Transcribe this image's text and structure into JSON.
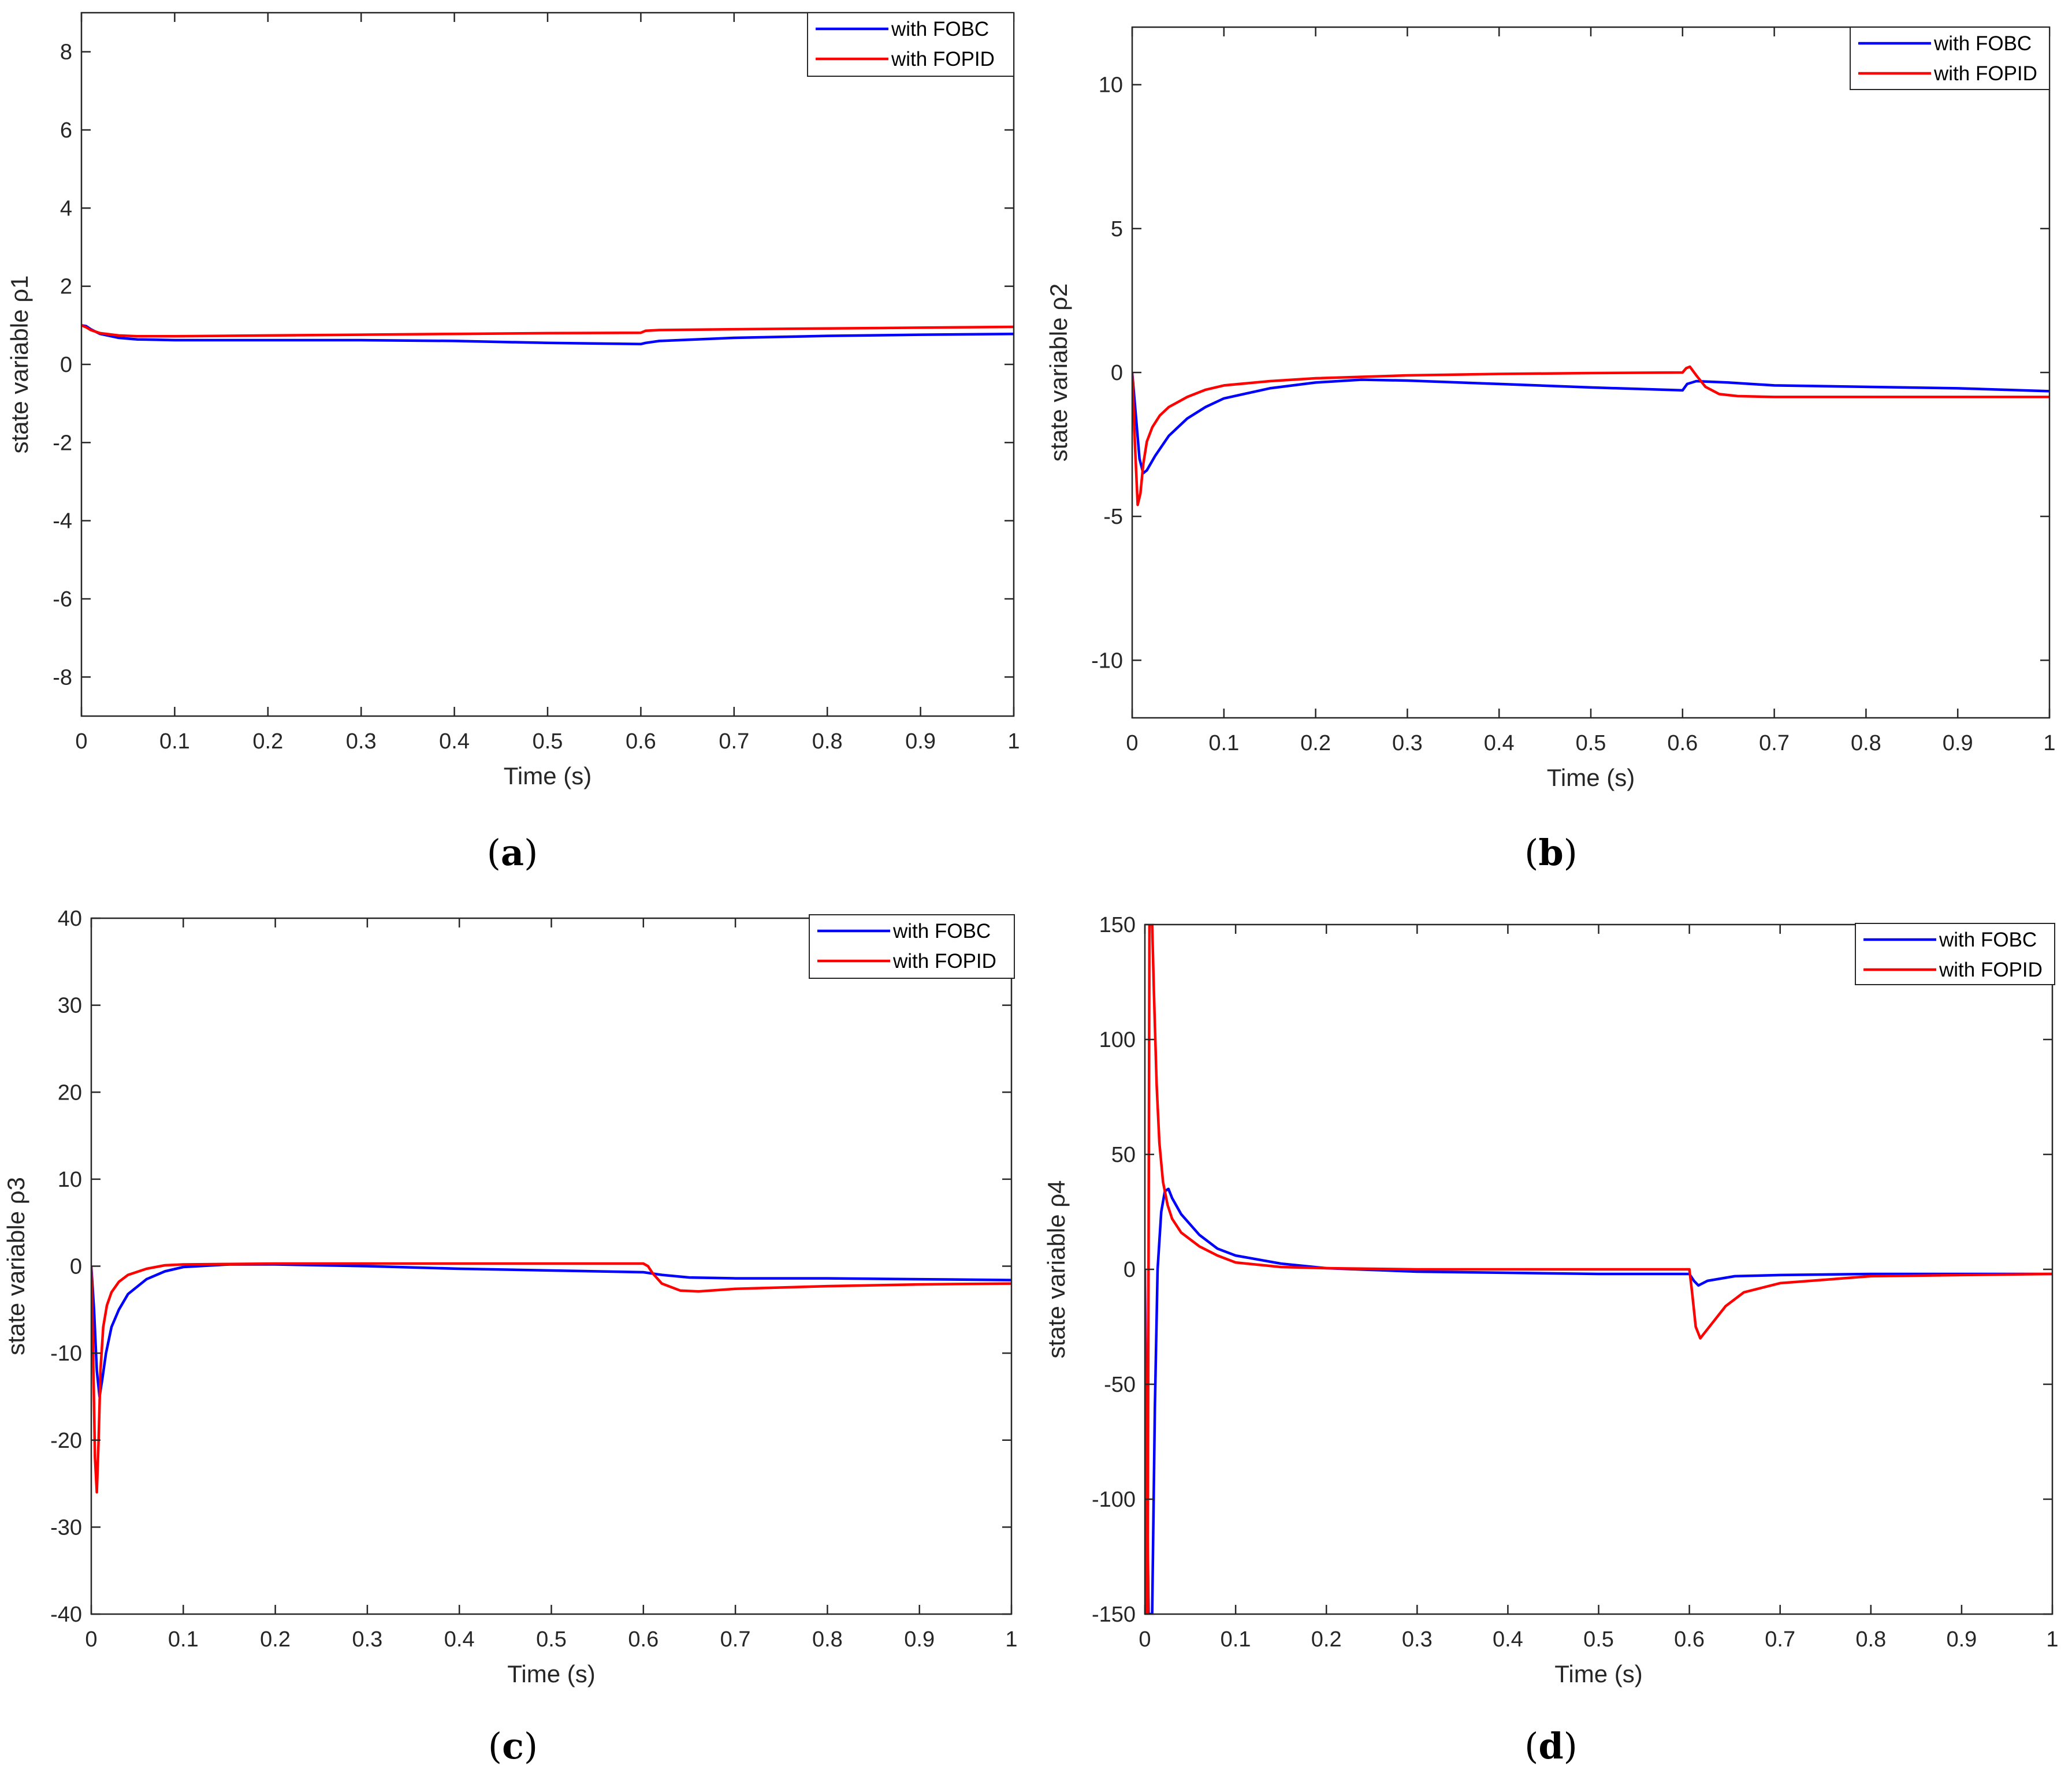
{
  "chart_data": [
    {
      "panel": "a",
      "type": "line",
      "caption": {
        "open": "(",
        "letter": "a",
        "close": ")"
      },
      "xlabel": "Time (s)",
      "ylabel": "state variable ρ1",
      "xlim": [
        0,
        1
      ],
      "ylim": [
        -9,
        9
      ],
      "xticks": [
        0,
        0.1,
        0.2,
        0.3,
        0.4,
        0.5,
        0.6,
        0.7,
        0.8,
        0.9,
        1
      ],
      "xtick_labels": [
        "0",
        "0.1",
        "0.2",
        "0.3",
        "0.4",
        "0.5",
        "0.6",
        "0.7",
        "0.8",
        "0.9",
        "1"
      ],
      "yticks": [
        -8,
        -6,
        -4,
        -2,
        0,
        2,
        4,
        6,
        8
      ],
      "ytick_labels": [
        "-8",
        "-6",
        "-4",
        "-2",
        "0",
        "2",
        "4",
        "6",
        "8"
      ],
      "legend_position": "top-right",
      "series": [
        {
          "name": "with FOBC",
          "color": "#0000ff",
          "x": [
            0,
            0.005,
            0.01,
            0.02,
            0.04,
            0.06,
            0.1,
            0.2,
            0.3,
            0.4,
            0.5,
            0.6,
            0.605,
            0.62,
            0.7,
            0.8,
            0.9,
            1
          ],
          "y": [
            1.0,
            0.98,
            0.9,
            0.78,
            0.68,
            0.64,
            0.62,
            0.62,
            0.62,
            0.6,
            0.55,
            0.52,
            0.55,
            0.6,
            0.68,
            0.73,
            0.76,
            0.78
          ]
        },
        {
          "name": "with FOPID",
          "color": "#ff0000",
          "x": [
            0,
            0.005,
            0.01,
            0.02,
            0.04,
            0.06,
            0.1,
            0.2,
            0.3,
            0.4,
            0.5,
            0.6,
            0.605,
            0.62,
            0.7,
            0.8,
            0.9,
            1
          ],
          "y": [
            1.0,
            0.95,
            0.88,
            0.8,
            0.74,
            0.72,
            0.72,
            0.74,
            0.76,
            0.78,
            0.8,
            0.81,
            0.86,
            0.88,
            0.9,
            0.92,
            0.94,
            0.96
          ]
        }
      ]
    },
    {
      "panel": "b",
      "type": "line",
      "caption": {
        "open": "(",
        "letter": "b",
        "close": ")"
      },
      "xlabel": "Time (s)",
      "ylabel": "state variable ρ2",
      "xlim": [
        0,
        1
      ],
      "ylim": [
        -12,
        12
      ],
      "xticks": [
        0,
        0.1,
        0.2,
        0.3,
        0.4,
        0.5,
        0.6,
        0.7,
        0.8,
        0.9,
        1
      ],
      "xtick_labels": [
        "0",
        "0.1",
        "0.2",
        "0.3",
        "0.4",
        "0.5",
        "0.6",
        "0.7",
        "0.8",
        "0.9",
        "1"
      ],
      "yticks": [
        -10,
        -5,
        0,
        5,
        10
      ],
      "ytick_labels": [
        "-10",
        "-5",
        "0",
        "5",
        "10"
      ],
      "legend_position": "top-right",
      "series": [
        {
          "name": "with FOBC",
          "color": "#0000ff",
          "x": [
            0,
            0.004,
            0.008,
            0.012,
            0.016,
            0.025,
            0.04,
            0.06,
            0.08,
            0.1,
            0.15,
            0.2,
            0.25,
            0.3,
            0.4,
            0.5,
            0.6,
            0.605,
            0.615,
            0.65,
            0.7,
            0.8,
            0.9,
            1
          ],
          "y": [
            0,
            -1.5,
            -3.0,
            -3.5,
            -3.4,
            -2.9,
            -2.2,
            -1.6,
            -1.2,
            -0.9,
            -0.55,
            -0.35,
            -0.25,
            -0.28,
            -0.4,
            -0.52,
            -0.62,
            -0.4,
            -0.3,
            -0.35,
            -0.45,
            -0.5,
            -0.55,
            -0.65
          ]
        },
        {
          "name": "with FOPID",
          "color": "#ff0000",
          "x": [
            0,
            0.003,
            0.006,
            0.009,
            0.012,
            0.016,
            0.022,
            0.03,
            0.04,
            0.06,
            0.08,
            0.1,
            0.15,
            0.2,
            0.3,
            0.4,
            0.5,
            0.6,
            0.604,
            0.608,
            0.615,
            0.625,
            0.64,
            0.66,
            0.7,
            0.8,
            0.9,
            1
          ],
          "y": [
            0,
            -2.5,
            -4.6,
            -4.2,
            -3.2,
            -2.4,
            -1.9,
            -1.5,
            -1.2,
            -0.85,
            -0.6,
            -0.45,
            -0.3,
            -0.2,
            -0.1,
            -0.05,
            -0.02,
            0.0,
            0.15,
            0.2,
            -0.1,
            -0.5,
            -0.75,
            -0.82,
            -0.85,
            -0.85,
            -0.85,
            -0.85
          ]
        }
      ]
    },
    {
      "panel": "c",
      "type": "line",
      "caption": {
        "open": "(",
        "letter": "c",
        "close": ")"
      },
      "xlabel": "Time (s)",
      "ylabel": "state variable ρ3",
      "xlim": [
        0,
        1
      ],
      "ylim": [
        -40,
        40
      ],
      "xticks": [
        0,
        0.1,
        0.2,
        0.3,
        0.4,
        0.5,
        0.6,
        0.7,
        0.8,
        0.9,
        1
      ],
      "xtick_labels": [
        "0",
        "0.1",
        "0.2",
        "0.3",
        "0.4",
        "0.5",
        "0.6",
        "0.7",
        "0.8",
        "0.9",
        "1"
      ],
      "yticks": [
        -40,
        -30,
        -20,
        -10,
        0,
        10,
        20,
        30,
        40
      ],
      "ytick_labels": [
        "-40",
        "-30",
        "-20",
        "-10",
        "0",
        "10",
        "20",
        "30",
        "40"
      ],
      "legend_position": "top-right",
      "series": [
        {
          "name": "with FOBC",
          "color": "#0000ff",
          "x": [
            0,
            0.003,
            0.006,
            0.009,
            0.012,
            0.016,
            0.022,
            0.03,
            0.04,
            0.06,
            0.08,
            0.1,
            0.15,
            0.2,
            0.3,
            0.4,
            0.5,
            0.6,
            0.62,
            0.65,
            0.7,
            0.8,
            0.9,
            1
          ],
          "y": [
            0,
            -5,
            -12,
            -15,
            -13,
            -10,
            -7,
            -5,
            -3.2,
            -1.5,
            -0.6,
            -0.1,
            0.2,
            0.2,
            0.0,
            -0.3,
            -0.5,
            -0.7,
            -1.0,
            -1.3,
            -1.4,
            -1.4,
            -1.5,
            -1.6
          ]
        },
        {
          "name": "with FOPID",
          "color": "#ff0000",
          "x": [
            0,
            0.002,
            0.004,
            0.006,
            0.008,
            0.01,
            0.013,
            0.017,
            0.022,
            0.03,
            0.04,
            0.06,
            0.08,
            0.1,
            0.15,
            0.2,
            0.3,
            0.4,
            0.5,
            0.6,
            0.605,
            0.61,
            0.62,
            0.64,
            0.66,
            0.7,
            0.8,
            0.9,
            1
          ],
          "y": [
            0,
            -10,
            -22,
            -26,
            -20,
            -12,
            -7,
            -4.5,
            -3,
            -1.8,
            -1,
            -0.3,
            0.1,
            0.2,
            0.25,
            0.3,
            0.3,
            0.3,
            0.3,
            0.3,
            0.0,
            -0.8,
            -2.0,
            -2.8,
            -2.9,
            -2.6,
            -2.3,
            -2.1,
            -2.0
          ]
        }
      ]
    },
    {
      "panel": "d",
      "type": "line",
      "caption": {
        "open": "(",
        "letter": "d",
        "close": ")"
      },
      "xlabel": "Time (s)",
      "ylabel": "state variable ρ4",
      "xlim": [
        0,
        1
      ],
      "ylim": [
        -150,
        150
      ],
      "xticks": [
        0,
        0.1,
        0.2,
        0.3,
        0.4,
        0.5,
        0.6,
        0.7,
        0.8,
        0.9,
        1
      ],
      "xtick_labels": [
        "0",
        "0.1",
        "0.2",
        "0.3",
        "0.4",
        "0.5",
        "0.6",
        "0.7",
        "0.8",
        "0.9",
        "1"
      ],
      "yticks": [
        -150,
        -100,
        -50,
        0,
        50,
        100,
        150
      ],
      "ytick_labels": [
        "-150",
        "-100",
        "-50",
        "0",
        "50",
        "100",
        "150"
      ],
      "legend_position": "top-right",
      "series": [
        {
          "name": "with FOBC",
          "color": "#0000ff",
          "x": [
            0,
            0.002,
            0.004,
            0.006,
            0.008,
            0.011,
            0.014,
            0.018,
            0.022,
            0.026,
            0.03,
            0.04,
            0.06,
            0.08,
            0.1,
            0.15,
            0.2,
            0.3,
            0.4,
            0.5,
            0.6,
            0.605,
            0.61,
            0.62,
            0.65,
            0.7,
            0.8,
            0.9,
            1
          ],
          "y": [
            0,
            -80,
            -150,
            -150,
            -150,
            -60,
            0,
            25,
            34,
            35,
            31,
            24,
            15,
            9,
            6,
            2.5,
            0.5,
            -1,
            -1.5,
            -2,
            -2,
            -5,
            -7,
            -5,
            -3,
            -2.5,
            -2,
            -2,
            -2
          ]
        },
        {
          "name": "with FOPID",
          "color": "#ff0000",
          "x": [
            0,
            0.0015,
            0.003,
            0.004,
            0.005,
            0.0065,
            0.008,
            0.01,
            0.013,
            0.016,
            0.02,
            0.025,
            0.03,
            0.04,
            0.06,
            0.08,
            0.1,
            0.15,
            0.2,
            0.3,
            0.4,
            0.5,
            0.6,
            0.603,
            0.607,
            0.612,
            0.62,
            0.64,
            0.66,
            0.7,
            0.8,
            0.9,
            1
          ],
          "y": [
            0,
            -150,
            -150,
            0,
            150,
            150,
            150,
            120,
            80,
            55,
            38,
            28,
            22,
            16,
            10,
            6,
            3,
            1,
            0.5,
            0,
            0,
            0,
            0,
            -10,
            -25,
            -30,
            -26,
            -16,
            -10,
            -6,
            -3,
            -2.5,
            -2
          ]
        }
      ]
    }
  ]
}
